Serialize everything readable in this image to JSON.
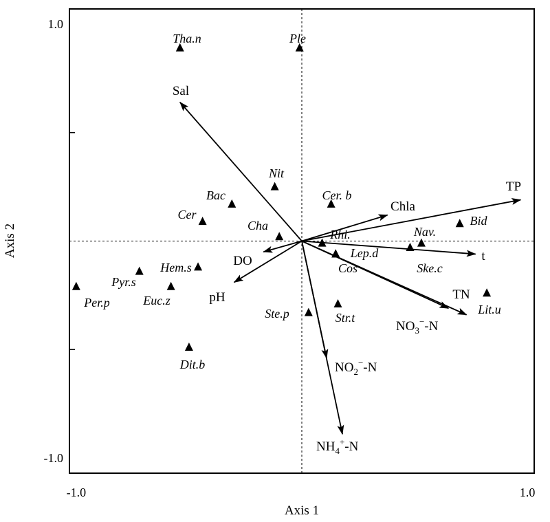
{
  "chart_data": {
    "type": "scatter",
    "subtype": "rda-biplot",
    "xlabel": "Axis 1",
    "ylabel": "Axis 2",
    "xlim": [
      -1.03,
      1.03
    ],
    "ylim": [
      -1.07,
      1.07
    ],
    "x_tick_labels": [
      {
        "value": -1.0,
        "label": "-1.0"
      },
      {
        "value": 1.0,
        "label": "1.0"
      }
    ],
    "y_tick_labels": [
      {
        "value": 1.0,
        "label": "1.0"
      },
      {
        "value": -1.0,
        "label": "-1.0"
      }
    ],
    "minor_ticks": [
      -0.5,
      0.5
    ],
    "reference_lines": {
      "x": 0,
      "y": 0,
      "style": "dashed"
    },
    "marker": "triangle",
    "environment_vectors": [
      {
        "main": "Sal",
        "x": -0.54,
        "y": 0.64
      },
      {
        "main": "TP",
        "x": 0.97,
        "y": 0.19
      },
      {
        "main": "Chla",
        "x": 0.38,
        "y": 0.12
      },
      {
        "main": "t",
        "x": 0.77,
        "y": -0.06
      },
      {
        "main": "TN",
        "x": 0.73,
        "y": -0.34
      },
      {
        "main": "DO",
        "x": -0.17,
        "y": -0.05
      },
      {
        "main": "pH",
        "x": -0.3,
        "y": -0.19
      },
      {
        "main": "NO",
        "sub": "3",
        "sup": "−",
        "tail": "-N",
        "x": 0.65,
        "y": -0.31
      },
      {
        "main": "NO",
        "sub": "2",
        "sup": "−",
        "tail": "-N",
        "x": 0.11,
        "y": -0.54
      },
      {
        "main": "NH",
        "sub": "4",
        "sup": "+",
        "tail": "-N",
        "x": 0.18,
        "y": -0.89
      }
    ],
    "species": [
      {
        "name": "Tha.n",
        "x": -0.54,
        "y": 0.89
      },
      {
        "name": "Ple",
        "x": -0.01,
        "y": 0.89
      },
      {
        "name": "Nit",
        "x": -0.12,
        "y": 0.25
      },
      {
        "name": "Cer. b",
        "x": 0.13,
        "y": 0.17
      },
      {
        "name": "Bac",
        "x": -0.31,
        "y": 0.17
      },
      {
        "name": "Cer",
        "x": -0.44,
        "y": 0.09
      },
      {
        "name": "Cha",
        "x": -0.1,
        "y": 0.02
      },
      {
        "name": "Bid",
        "x": 0.7,
        "y": 0.08
      },
      {
        "name": "Nav.",
        "x": 0.53,
        "y": -0.01
      },
      {
        "name": "Ske.c",
        "x": 0.48,
        "y": -0.03
      },
      {
        "name": "Rhi.",
        "x": 0.09,
        "y": -0.01
      },
      {
        "name": "Lep.d",
        "x": 0.15,
        "y": -0.06
      },
      {
        "name": "Cos",
        "x": 0.15,
        "y": -0.06
      },
      {
        "name": "Hem.s",
        "x": -0.46,
        "y": -0.12
      },
      {
        "name": "Pyr.s",
        "x": -0.72,
        "y": -0.14
      },
      {
        "name": "Per.p",
        "x": -1.0,
        "y": -0.21
      },
      {
        "name": "Euc.z",
        "x": -0.58,
        "y": -0.21
      },
      {
        "name": "Lit.u",
        "x": 0.82,
        "y": -0.24
      },
      {
        "name": "Str.t",
        "x": 0.16,
        "y": -0.29
      },
      {
        "name": "Ste.p",
        "x": 0.03,
        "y": -0.33
      },
      {
        "name": "Dit.b",
        "x": -0.5,
        "y": -0.49
      }
    ]
  }
}
